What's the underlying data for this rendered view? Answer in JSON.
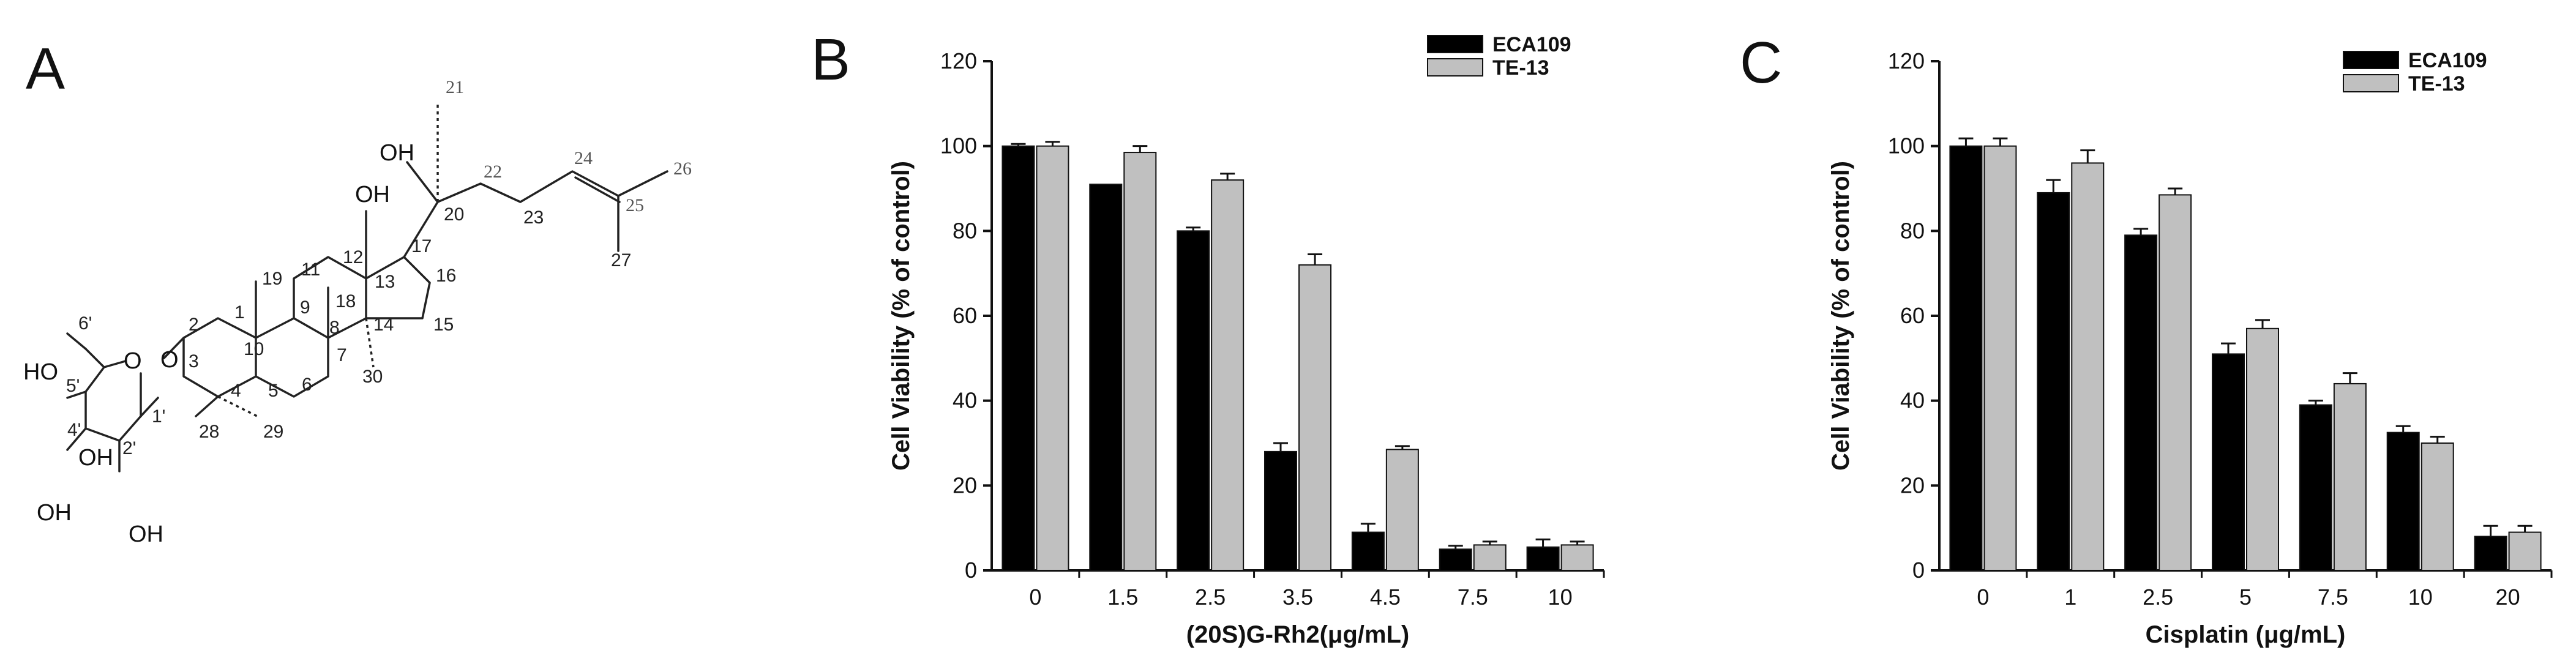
{
  "panel_letters": {
    "a": "A",
    "b": "B",
    "c": "C"
  },
  "structure": {
    "atoms": {
      "oh": "OH",
      "ho": "HO",
      "o": "O"
    },
    "numbers": {
      "n1": "1",
      "n2": "2",
      "n3": "3",
      "n4": "4",
      "n5": "5",
      "n6": "6",
      "n7": "7",
      "n8": "8",
      "n9": "9",
      "n10": "10",
      "n11": "11",
      "n12": "12",
      "n13": "13",
      "n14": "14",
      "n15": "15",
      "n16": "16",
      "n17": "17",
      "n18": "18",
      "n19": "19",
      "n20": "20",
      "n21": "21",
      "n22": "22",
      "n23": "23",
      "n24": "24",
      "n25": "25",
      "n26": "26",
      "n27": "27",
      "n28": "28",
      "n29": "29",
      "n30": "30",
      "n1p": "1'",
      "n2p": "2'",
      "n4p": "4'",
      "n5p": "5'",
      "n6p": "6'"
    }
  },
  "chart_data": [
    {
      "type": "bar",
      "panel": "B",
      "categories": [
        "0",
        "1.5",
        "2.5",
        "3.5",
        "4.5",
        "7.5",
        "10"
      ],
      "xlabel": "(20S)G-Rh2(μg/mL)",
      "ylabel": "Cell Viability (% of control)",
      "ylim": [
        0,
        120
      ],
      "yticks": [
        "0",
        "20",
        "40",
        "60",
        "80",
        "100",
        "120"
      ],
      "legend_position": "top-right",
      "series": [
        {
          "name": "ECA109",
          "color": "#000000",
          "values": [
            100,
            91,
            80,
            28,
            9,
            5,
            5.5
          ],
          "errors": [
            0.5,
            0,
            0.8,
            2,
            2,
            0.8,
            1.8
          ]
        },
        {
          "name": "TE-13",
          "color": "#c0c0c0",
          "values": [
            100,
            98.5,
            92,
            72,
            28.5,
            6,
            6
          ],
          "errors": [
            1,
            1.5,
            1.5,
            2.5,
            0.8,
            0.8,
            0.8
          ]
        }
      ]
    },
    {
      "type": "bar",
      "panel": "C",
      "categories": [
        "0",
        "1",
        "2.5",
        "5",
        "7.5",
        "10",
        "20"
      ],
      "xlabel": "Cisplatin (μg/mL)",
      "ylabel": "Cell Viability (% of control)",
      "ylim": [
        0,
        120
      ],
      "yticks": [
        "0",
        "20",
        "40",
        "60",
        "80",
        "100",
        "120"
      ],
      "legend_position": "top-right",
      "series": [
        {
          "name": "ECA109",
          "color": "#000000",
          "values": [
            100,
            89,
            79,
            51,
            39,
            32.5,
            8
          ],
          "errors": [
            1.8,
            3,
            1.5,
            2.5,
            1,
            1.5,
            2.5
          ]
        },
        {
          "name": "TE-13",
          "color": "#c0c0c0",
          "values": [
            100,
            96,
            88.5,
            57,
            44,
            30,
            9
          ],
          "errors": [
            1.8,
            3,
            1.5,
            2,
            2.5,
            1.5,
            1.5
          ]
        }
      ]
    }
  ]
}
